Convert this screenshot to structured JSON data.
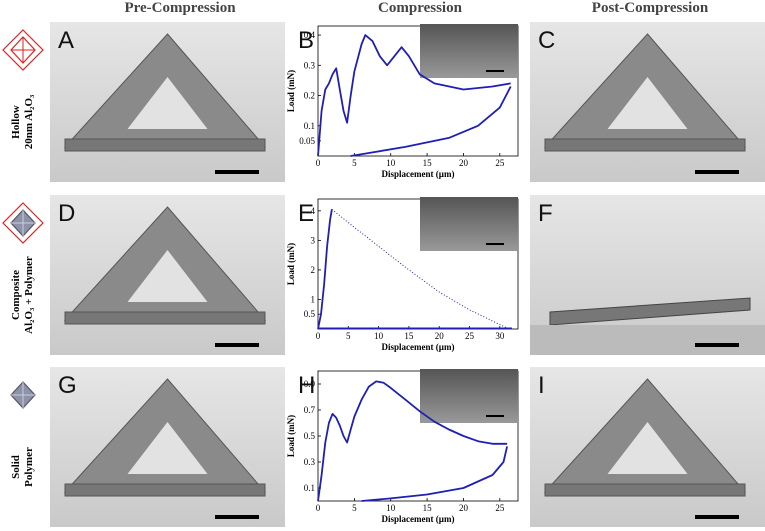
{
  "column_headers": [
    "Pre-Compression",
    "Compression",
    "Post-Compression"
  ],
  "row_labels": [
    [
      "Hollow",
      "20nm Al₂O₃"
    ],
    [
      "Composite",
      "Al₂O₃ + Polymer"
    ],
    [
      "Solid",
      "Polymer"
    ]
  ],
  "panel_letters": [
    "A",
    "B",
    "C",
    "D",
    "E",
    "F",
    "G",
    "H",
    "I"
  ],
  "chart_data": [
    {
      "type": "line",
      "xlabel": "Displacement (µm)",
      "ylabel": "Load (mN)",
      "xlim": [
        0,
        27.5
      ],
      "ylim": [
        0,
        0.43
      ],
      "xticks": [
        0,
        5,
        10,
        15,
        20,
        25
      ],
      "yticks": [
        0.05,
        0.1,
        0.2,
        0.3,
        0.4
      ],
      "series": [
        {
          "color": "#1f1fb4",
          "style": "solid",
          "x": [
            0,
            0.5,
            1,
            1.5,
            2,
            2.5,
            3,
            3.5,
            4,
            4.5,
            5,
            6,
            6.5,
            7.5,
            8.5,
            9.5,
            10.5,
            11.5,
            12.5,
            14,
            16,
            20,
            24,
            26.5
          ],
          "values": [
            0,
            0.15,
            0.22,
            0.24,
            0.27,
            0.29,
            0.22,
            0.15,
            0.11,
            0.2,
            0.28,
            0.37,
            0.4,
            0.38,
            0.33,
            0.3,
            0.33,
            0.36,
            0.33,
            0.27,
            0.24,
            0.22,
            0.23,
            0.24
          ]
        },
        {
          "color": "#1f1fb4",
          "style": "solid",
          "x": [
            26.5,
            25,
            22,
            18,
            12,
            7,
            4.5
          ],
          "values": [
            0.23,
            0.16,
            0.1,
            0.06,
            0.03,
            0.01,
            0
          ]
        }
      ]
    },
    {
      "type": "line",
      "xlabel": "Displacement (µm)",
      "ylabel": "Load (mN)",
      "xlim": [
        0,
        33
      ],
      "ylim": [
        0,
        4.4
      ],
      "xticks": [
        0,
        5,
        10,
        15,
        20,
        25,
        30
      ],
      "yticks": [
        0.5,
        1,
        2,
        3,
        4
      ],
      "series": [
        {
          "color": "#1f1fb4",
          "style": "solid",
          "x": [
            0,
            0.5,
            1,
            1.5,
            2,
            2.3
          ],
          "values": [
            0,
            0.5,
            1.5,
            2.8,
            3.7,
            4.05
          ]
        },
        {
          "color": "#1f1fb4",
          "style": "dotted",
          "x": [
            2.3,
            5,
            10,
            15,
            20,
            25,
            30,
            31
          ],
          "values": [
            4.05,
            3.6,
            2.8,
            2.0,
            1.25,
            0.65,
            0.15,
            0.05
          ]
        },
        {
          "color": "#1f1fb4",
          "style": "solid",
          "x": [
            0,
            32
          ],
          "values": [
            0.02,
            0.02
          ]
        }
      ]
    },
    {
      "type": "line",
      "xlabel": "Displacement (µm)",
      "ylabel": "Load (mN)",
      "xlim": [
        0,
        27.5
      ],
      "ylim": [
        0,
        1.0
      ],
      "xticks": [
        0,
        5,
        10,
        15,
        20,
        25
      ],
      "yticks": [
        0.1,
        0.3,
        0.5,
        0.7,
        0.9
      ],
      "series": [
        {
          "color": "#1f1fb4",
          "style": "solid",
          "x": [
            0,
            0.5,
            1,
            1.5,
            2,
            2.5,
            3,
            3.5,
            4,
            4.5,
            5,
            6,
            7,
            8,
            9,
            10,
            12,
            14,
            16,
            18,
            20,
            22,
            24,
            26
          ],
          "values": [
            0,
            0.2,
            0.45,
            0.6,
            0.67,
            0.64,
            0.58,
            0.5,
            0.45,
            0.55,
            0.65,
            0.78,
            0.88,
            0.92,
            0.91,
            0.87,
            0.78,
            0.69,
            0.61,
            0.55,
            0.5,
            0.46,
            0.44,
            0.44
          ]
        },
        {
          "color": "#1f1fb4",
          "style": "solid",
          "x": [
            26,
            25.5,
            24,
            20,
            15,
            10,
            6
          ],
          "values": [
            0.42,
            0.3,
            0.2,
            0.1,
            0.05,
            0.02,
            0
          ]
        }
      ]
    }
  ]
}
